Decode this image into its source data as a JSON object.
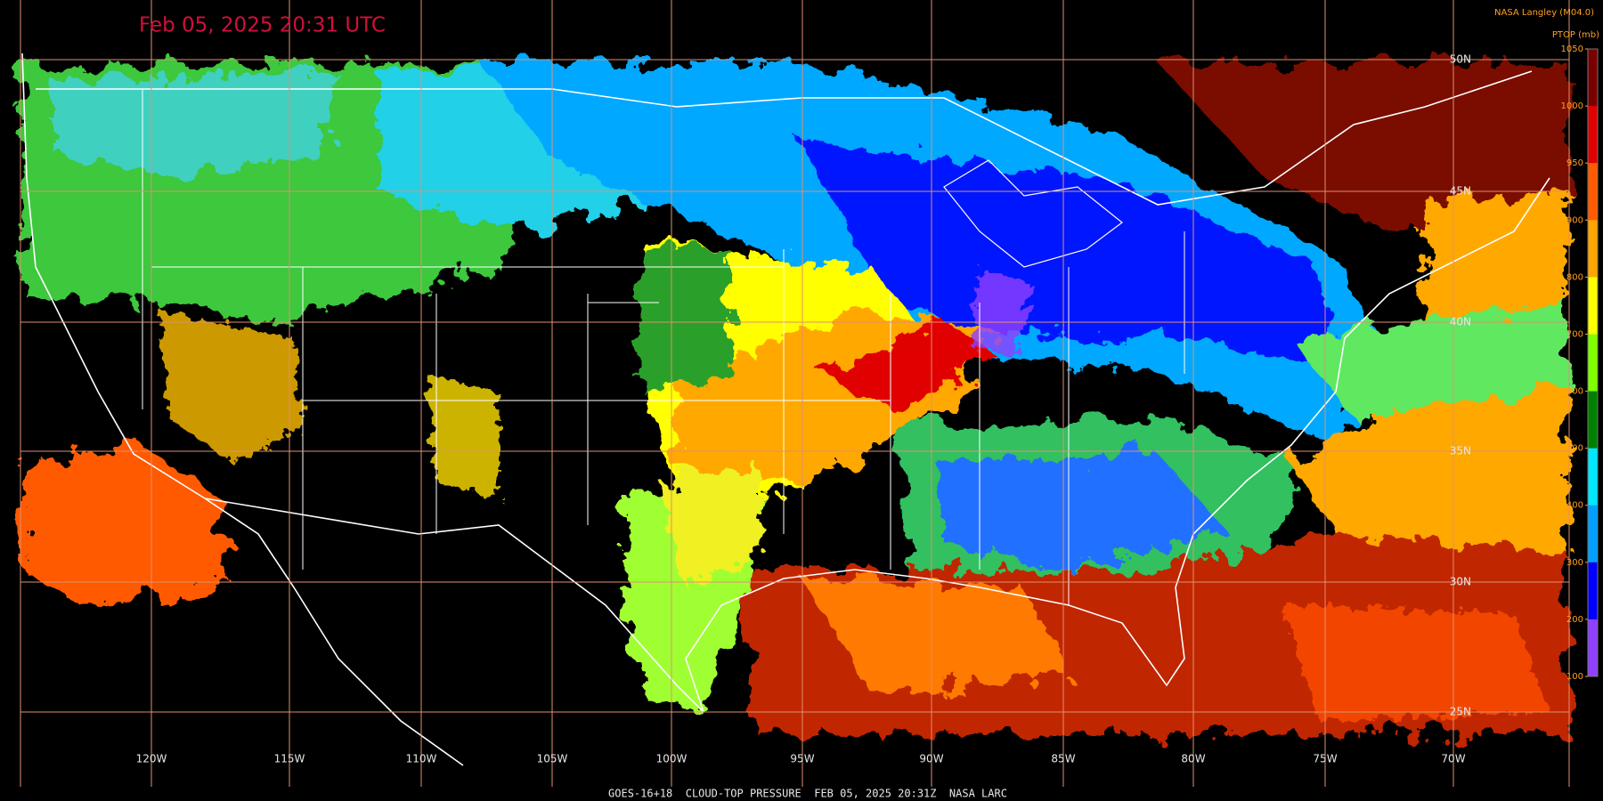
{
  "title": "Feb 05, 2025 20:31 UTC",
  "credit": "NASA Langley (M04.0)",
  "legend": {
    "title": "PTOP (mb)",
    "ticks": [
      1050,
      1000,
      950,
      900,
      800,
      700,
      600,
      500,
      400,
      300,
      200,
      100
    ],
    "colors": [
      "#7a0000",
      "#e00000",
      "#ff5a00",
      "#ffa500",
      "#ffff00",
      "#80ff00",
      "#008000",
      "#00e8ff",
      "#00a0ff",
      "#0000ff",
      "#9040ff"
    ]
  },
  "longitudes": [
    "120W",
    "115W",
    "110W",
    "105W",
    "100W",
    "95W",
    "90W",
    "85W",
    "80W",
    "75W",
    "70W"
  ],
  "latitudes": [
    "50N",
    "45N",
    "40N",
    "35N",
    "30N",
    "25N"
  ],
  "footer": "GOES-16+18  CLOUD-TOP PRESSURE  FEB 05, 2025 20:31Z  NASA LARC"
}
